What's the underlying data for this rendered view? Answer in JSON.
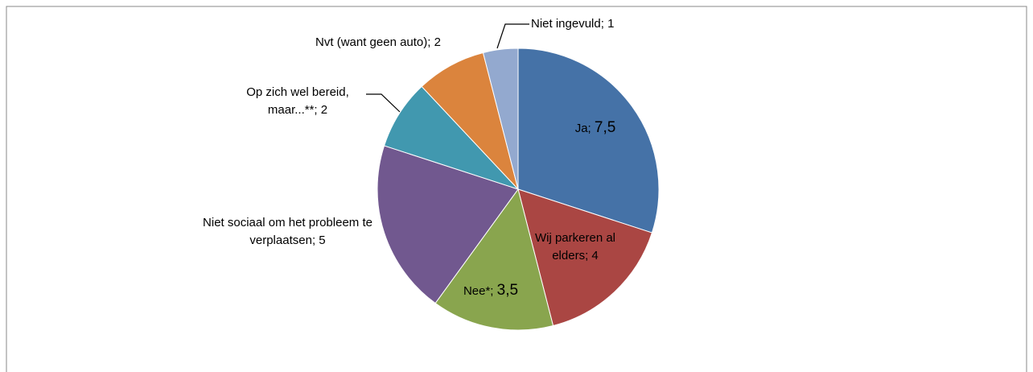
{
  "chart_data": {
    "type": "pie",
    "categories": [
      "Ja",
      "Wij parkeren al elders",
      "Nee*",
      "Niet sociaal om het probleem te verplaatsen",
      "Op zich wel bereid, maar...**",
      "Nvt (want geen auto)",
      "Niet ingevuld"
    ],
    "values": [
      7.5,
      4,
      3.5,
      5,
      2,
      2,
      1
    ],
    "value_labels": [
      "7,5",
      "4",
      "3,5",
      "5",
      "2",
      "2",
      "1"
    ],
    "label_separator": "; ",
    "colors": [
      "#4572a7",
      "#aa4643",
      "#89a54e",
      "#71588f",
      "#4198af",
      "#db843d",
      "#93a9cf"
    ]
  }
}
